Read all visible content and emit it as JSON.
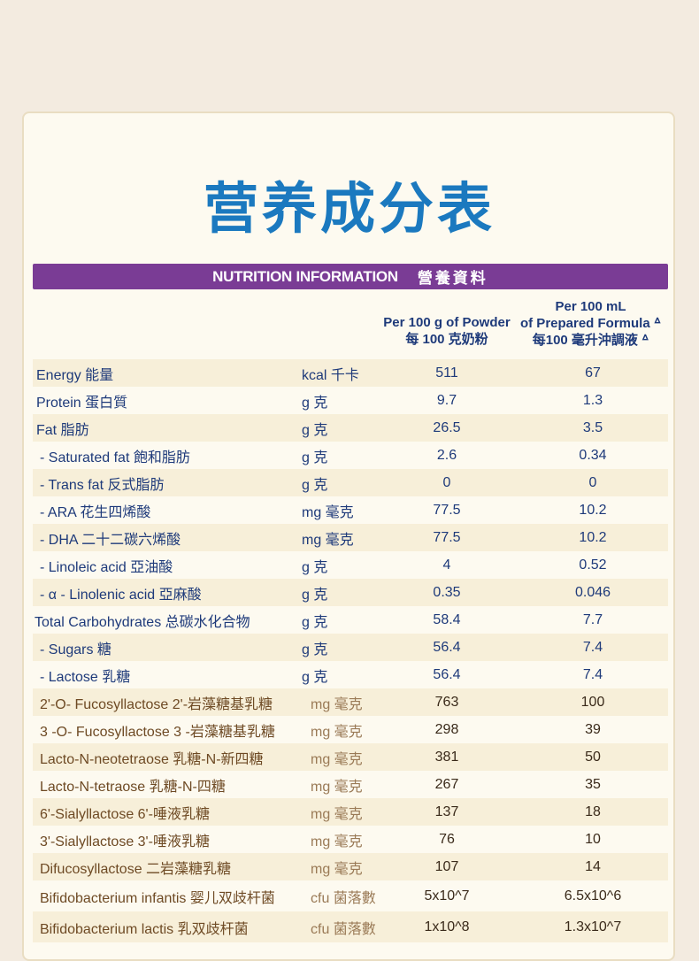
{
  "title": "营养成分表",
  "header": {
    "en": "NUTRITION INFORMATION",
    "zh": "營養資料"
  },
  "col1": {
    "line1": "Per 100 g of Powder",
    "line2": "每 100 克奶粉"
  },
  "col2": {
    "line1": "Per 100 mL",
    "line2": "of Prepared Formula ᐞ",
    "line3": "每100 毫升沖調液 ᐞ"
  },
  "rows": [
    {
      "label": "Energy 能量",
      "unit": "kcal 千卡",
      "v1": "511",
      "v2": "67"
    },
    {
      "label": "Protein 蛋白質",
      "unit": "g 克",
      "v1": "9.7",
      "v2": "1.3"
    },
    {
      "label": "Fat 脂肪",
      "unit": "g 克",
      "v1": "26.5",
      "v2": "3.5"
    },
    {
      "label": "- Saturated fat 飽和脂肪",
      "unit": "g 克",
      "v1": "2.6",
      "v2": "0.34"
    },
    {
      "label": "- Trans fat 反式脂肪",
      "unit": "g 克",
      "v1": "0",
      "v2": "0"
    },
    {
      "label": "- ARA 花生四烯酸",
      "unit": "mg 毫克",
      "v1": "77.5",
      "v2": "10.2"
    },
    {
      "label": "- DHA 二十二碳六烯酸",
      "unit": "mg 毫克",
      "v1": "77.5",
      "v2": "10.2"
    },
    {
      "label": "- Linoleic acid 亞油酸",
      "unit": "g 克",
      "v1": "4",
      "v2": "0.52"
    },
    {
      "label": "- α - Linolenic acid 亞麻酸",
      "unit": "g 克",
      "v1": "0.35",
      "v2": "0.046"
    },
    {
      "label": "Total Carbohydrates 总碳水化合物",
      "unit": "g 克",
      "v1": "58.4",
      "v2": "7.7"
    },
    {
      "label": "- Sugars 糖",
      "unit": "g 克",
      "v1": "56.4",
      "v2": "7.4"
    },
    {
      "label": "- Lactose 乳糖",
      "unit": "g 克",
      "v1": "56.4",
      "v2": "7.4"
    },
    {
      "label": "2'-O- Fucosyllactose 2'-岩藻糖基乳糖",
      "unit": "mg 毫克",
      "v1": "763",
      "v2": "100"
    },
    {
      "label": "3 -O- Fucosyllactose 3 -岩藻糖基乳糖",
      "unit": "mg 毫克",
      "v1": "298",
      "v2": "39"
    },
    {
      "label": "Lacto-N-neotetraose 乳糖-N-新四糖",
      "unit": "mg 毫克",
      "v1": "381",
      "v2": "50"
    },
    {
      "label": "Lacto-N-tetraose 乳糖-N-四糖",
      "unit": "mg 毫克",
      "v1": "267",
      "v2": "35"
    },
    {
      "label": "6'-Sialyllactose 6'-唾液乳糖",
      "unit": "mg 毫克",
      "v1": "137",
      "v2": "18"
    },
    {
      "label": "3'-Sialyllactose 3'-唾液乳糖",
      "unit": "mg 毫克",
      "v1": "76",
      "v2": "10"
    },
    {
      "label": "Difucosyllactose 二岩藻糖乳糖",
      "unit": "mg 毫克",
      "v1": "107",
      "v2": "14"
    },
    {
      "label": "Bifidobacterium infantis 婴儿双歧杆菌",
      "unit": "cfu 菌落數",
      "v1": "5x10^7",
      "v2": "6.5x10^6"
    },
    {
      "label": "Bifidobacterium lactis 乳双歧杆菌",
      "unit": "cfu 菌落數",
      "v1": "1x10^8",
      "v2": "1.3x10^7"
    }
  ]
}
